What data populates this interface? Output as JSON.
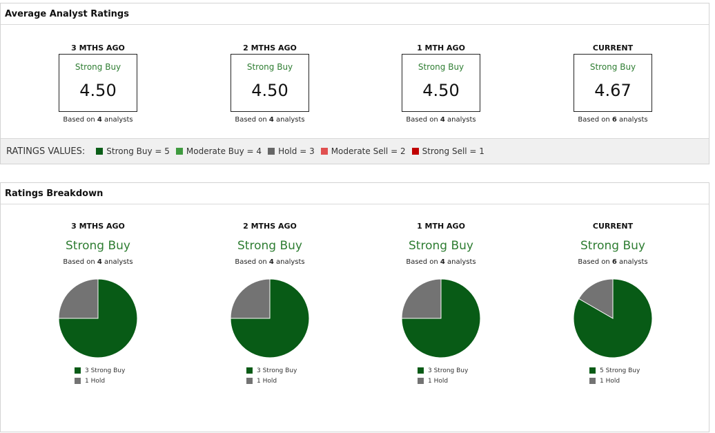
{
  "avg_section": {
    "title": "Average Analyst Ratings",
    "columns": [
      {
        "period": "3 MTHS AGO",
        "label": "Strong Buy",
        "score": "4.50",
        "based_pre": "Based on ",
        "count": "4",
        "based_post": " analysts"
      },
      {
        "period": "2 MTHS AGO",
        "label": "Strong Buy",
        "score": "4.50",
        "based_pre": "Based on ",
        "count": "4",
        "based_post": " analysts"
      },
      {
        "period": "1 MTH AGO",
        "label": "Strong Buy",
        "score": "4.50",
        "based_pre": "Based on ",
        "count": "4",
        "based_post": " analysts"
      },
      {
        "period": "CURRENT",
        "label": "Strong Buy",
        "score": "4.67",
        "based_pre": "Based on ",
        "count": "6",
        "based_post": " analysts"
      }
    ]
  },
  "ratings_values": {
    "title": "RATINGS VALUES:",
    "items": [
      {
        "label": "Strong Buy = 5",
        "color": "#0b5e18"
      },
      {
        "label": "Moderate Buy = 4",
        "color": "#3f9b3f"
      },
      {
        "label": "Hold = 3",
        "color": "#666666"
      },
      {
        "label": "Moderate Sell = 2",
        "color": "#e05050"
      },
      {
        "label": "Strong Sell = 1",
        "color": "#c00000"
      }
    ]
  },
  "breakdown_section": {
    "title": "Ratings Breakdown",
    "columns": [
      {
        "period": "3 MTHS AGO",
        "label": "Strong Buy",
        "based_pre": "Based on ",
        "count": "4",
        "based_post": " analysts",
        "legend": [
          {
            "label": "3 Strong Buy",
            "color": "#085b16"
          },
          {
            "label": "1 Hold",
            "color": "#737373"
          }
        ]
      },
      {
        "period": "2 MTHS AGO",
        "label": "Strong Buy",
        "based_pre": "Based on ",
        "count": "4",
        "based_post": " analysts",
        "legend": [
          {
            "label": "3 Strong Buy",
            "color": "#085b16"
          },
          {
            "label": "1 Hold",
            "color": "#737373"
          }
        ]
      },
      {
        "period": "1 MTH AGO",
        "label": "Strong Buy",
        "based_pre": "Based on ",
        "count": "4",
        "based_post": " analysts",
        "legend": [
          {
            "label": "3 Strong Buy",
            "color": "#085b16"
          },
          {
            "label": "1 Hold",
            "color": "#737373"
          }
        ]
      },
      {
        "period": "CURRENT",
        "label": "Strong Buy",
        "based_pre": "Based on ",
        "count": "6",
        "based_post": " analysts",
        "legend": [
          {
            "label": "5 Strong Buy",
            "color": "#085b16"
          },
          {
            "label": "1 Hold",
            "color": "#737373"
          }
        ]
      }
    ]
  },
  "chart_data": [
    {
      "type": "pie",
      "categories": [
        "Strong Buy",
        "Hold"
      ],
      "values": [
        3,
        1
      ],
      "colors": [
        "#085b16",
        "#737373"
      ]
    },
    {
      "type": "pie",
      "categories": [
        "Strong Buy",
        "Hold"
      ],
      "values": [
        3,
        1
      ],
      "colors": [
        "#085b16",
        "#737373"
      ]
    },
    {
      "type": "pie",
      "categories": [
        "Strong Buy",
        "Hold"
      ],
      "values": [
        3,
        1
      ],
      "colors": [
        "#085b16",
        "#737373"
      ]
    },
    {
      "type": "pie",
      "categories": [
        "Strong Buy",
        "Hold"
      ],
      "values": [
        5,
        1
      ],
      "colors": [
        "#085b16",
        "#737373"
      ]
    }
  ]
}
